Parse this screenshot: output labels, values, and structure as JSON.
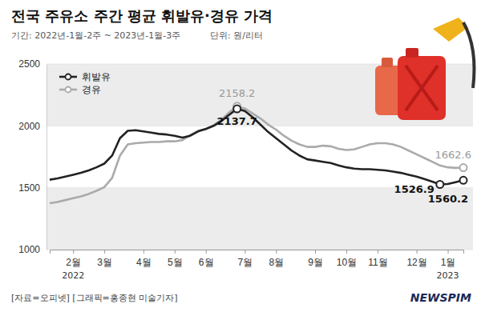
{
  "chart_data": {
    "type": "line",
    "title": "전국 주유소 주간 평균 휘발유·경유 가격",
    "subtitle": "기간: 2022년-1월-2주 ~ 2023년-1월-3주",
    "unit_label": "단위: 원/리터",
    "source": "[자료=오피넷] [그래픽=홍종현 미술기자]",
    "brand": "NEWSPIM",
    "categories": [
      null,
      null,
      null,
      "2월",
      null,
      null,
      null,
      "3월",
      null,
      null,
      null,
      null,
      "4월",
      null,
      null,
      null,
      "5월",
      null,
      null,
      null,
      "6월",
      null,
      null,
      null,
      null,
      "7월",
      null,
      null,
      null,
      "8월",
      null,
      null,
      null,
      null,
      "9월",
      null,
      null,
      null,
      "10월",
      null,
      null,
      null,
      "11월",
      null,
      null,
      null,
      null,
      "12월",
      null,
      null,
      null,
      "1월",
      null,
      null
    ],
    "annotations": [
      {
        "text": "2022",
        "at": "2월"
      },
      {
        "text": "2023",
        "at": "1월"
      }
    ],
    "series": [
      {
        "name": "휘발유",
        "color": "#222222",
        "marker": "circle",
        "values": [
          1565,
          1575,
          1590,
          1605,
          1620,
          1640,
          1665,
          1695,
          1760,
          1900,
          1960,
          1965,
          1955,
          1945,
          1935,
          1930,
          1920,
          1905,
          1920,
          1955,
          1975,
          2000,
          2040,
          2090,
          2137.7,
          2120,
          2070,
          2010,
          1950,
          1900,
          1850,
          1800,
          1760,
          1730,
          1720,
          1710,
          1700,
          1680,
          1665,
          1655,
          1650,
          1650,
          1645,
          1640,
          1630,
          1620,
          1605,
          1590,
          1570,
          1550,
          1526.9,
          1530,
          1545,
          1560.2
        ],
        "value_labels": [
          null,
          null,
          null,
          null,
          null,
          null,
          null,
          null,
          null,
          null,
          null,
          null,
          null,
          null,
          null,
          null,
          null,
          null,
          null,
          null,
          null,
          null,
          null,
          null,
          "2137.7",
          null,
          null,
          null,
          null,
          null,
          null,
          null,
          null,
          null,
          null,
          null,
          null,
          null,
          null,
          null,
          null,
          null,
          null,
          null,
          null,
          null,
          null,
          null,
          null,
          null,
          "1526.9",
          null,
          null,
          "1560.2"
        ]
      },
      {
        "name": "경유",
        "color": "#aaaaaa",
        "marker": "circle",
        "values": [
          1375,
          1385,
          1400,
          1415,
          1430,
          1450,
          1475,
          1505,
          1580,
          1760,
          1850,
          1860,
          1865,
          1870,
          1870,
          1875,
          1875,
          1885,
          1925,
          1960,
          1975,
          2005,
          2050,
          2110,
          2158.2,
          2140,
          2100,
          2060,
          2010,
          1970,
          1920,
          1880,
          1850,
          1830,
          1830,
          1840,
          1835,
          1815,
          1805,
          1810,
          1830,
          1850,
          1860,
          1860,
          1850,
          1830,
          1800,
          1770,
          1740,
          1710,
          1680,
          1665,
          1660,
          1662.6
        ],
        "value_labels": [
          null,
          null,
          null,
          null,
          null,
          null,
          null,
          null,
          null,
          null,
          null,
          null,
          null,
          null,
          null,
          null,
          null,
          null,
          null,
          null,
          null,
          null,
          null,
          null,
          "2158.2",
          null,
          null,
          null,
          null,
          null,
          null,
          null,
          null,
          null,
          null,
          null,
          null,
          null,
          null,
          null,
          null,
          null,
          null,
          null,
          null,
          null,
          null,
          null,
          null,
          null,
          null,
          null,
          null,
          "1662.6"
        ]
      }
    ],
    "ylim": [
      1000,
      2500
    ],
    "yticks": [
      1000,
      1500,
      2000,
      2500
    ],
    "grid": true,
    "legend": "upper left"
  }
}
